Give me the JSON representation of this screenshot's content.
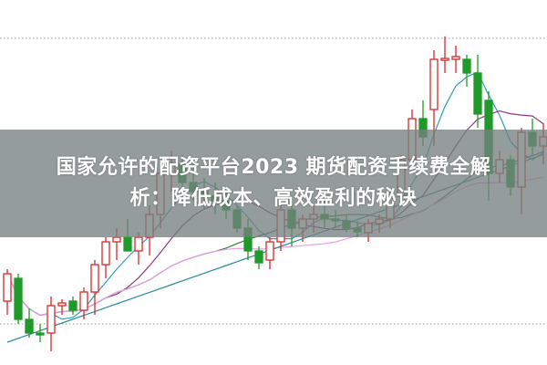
{
  "headline": {
    "line1": "国家允许的配资平台2023 期货配资手续费全解",
    "line2": "析：降低成本、高效盈利的秘诀"
  },
  "chart_data": {
    "type": "candlestick",
    "title": "",
    "xlabel": "",
    "ylabel": "",
    "grid": false,
    "reference_lines": [
      358,
      45
    ],
    "ylim": [
      0,
      400
    ],
    "colors": {
      "up": "#d42a2a",
      "down": "#1f9a2a",
      "ma5": "#2aa0b4",
      "ma10": "#8a3a7a",
      "ma20": "#3f7a3f",
      "ma30": "#e8a0e8",
      "ma60": "#2a8a96"
    },
    "moving_averages": [
      5,
      10,
      20,
      30,
      60
    ],
    "candles": [
      [
        70,
        105,
        55,
        100
      ],
      [
        95,
        100,
        45,
        50
      ],
      [
        50,
        62,
        30,
        35
      ],
      [
        35,
        45,
        25,
        33
      ],
      [
        35,
        75,
        15,
        65
      ],
      [
        65,
        72,
        55,
        68
      ],
      [
        70,
        75,
        55,
        60
      ],
      [
        60,
        85,
        50,
        80
      ],
      [
        80,
        115,
        55,
        110
      ],
      [
        110,
        140,
        95,
        135
      ],
      [
        135,
        150,
        115,
        140
      ],
      [
        140,
        160,
        125,
        125
      ],
      [
        125,
        145,
        110,
        140
      ],
      [
        140,
        175,
        120,
        165
      ],
      [
        165,
        215,
        150,
        210
      ],
      [
        210,
        235,
        190,
        220
      ],
      [
        220,
        230,
        195,
        200
      ],
      [
        200,
        220,
        180,
        190
      ],
      [
        190,
        205,
        170,
        185
      ],
      [
        185,
        200,
        165,
        180
      ],
      [
        180,
        190,
        160,
        170
      ],
      [
        170,
        175,
        145,
        150
      ],
      [
        150,
        160,
        115,
        125
      ],
      [
        125,
        130,
        105,
        112
      ],
      [
        115,
        140,
        105,
        135
      ],
      [
        135,
        175,
        125,
        170
      ],
      [
        170,
        185,
        130,
        150
      ],
      [
        150,
        165,
        135,
        160
      ],
      [
        160,
        175,
        145,
        165
      ],
      [
        165,
        180,
        150,
        160
      ],
      [
        160,
        170,
        150,
        158
      ],
      [
        158,
        165,
        145,
        150
      ],
      [
        150,
        158,
        140,
        146
      ],
      [
        145,
        160,
        135,
        155
      ],
      [
        155,
        165,
        145,
        160
      ],
      [
        160,
        190,
        150,
        185
      ],
      [
        185,
        230,
        175,
        225
      ],
      [
        225,
        280,
        215,
        270
      ],
      [
        270,
        290,
        240,
        250
      ],
      [
        280,
        345,
        240,
        335
      ],
      [
        335,
        360,
        320,
        336
      ],
      [
        335,
        350,
        320,
        338
      ],
      [
        335,
        340,
        305,
        320
      ],
      [
        320,
        340,
        260,
        275
      ],
      [
        290,
        300,
        180,
        210
      ],
      [
        210,
        235,
        200,
        225
      ],
      [
        225,
        230,
        185,
        195
      ],
      [
        195,
        260,
        165,
        255
      ],
      [
        255,
        270,
        230,
        240
      ],
      [
        240,
        265,
        220,
        250
      ]
    ]
  }
}
